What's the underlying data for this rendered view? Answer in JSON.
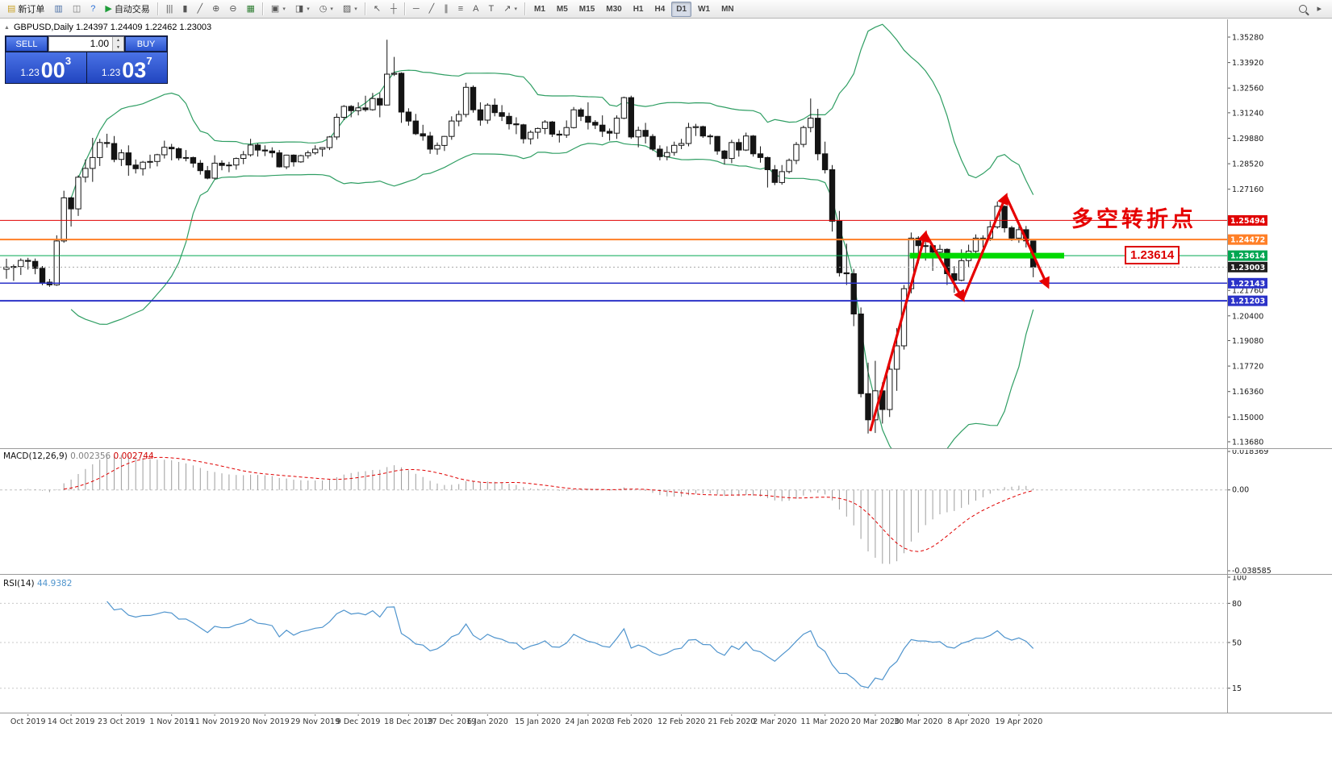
{
  "icons": {
    "collapse_arrow": "▲",
    "spinner_up": "▲",
    "spinner_down": "▼"
  },
  "toolbar": {
    "groups": [
      [
        {
          "name": "new-order",
          "icon": "▤",
          "icon_color": "#c9a227",
          "label": "新订单"
        },
        {
          "name": "market-watch",
          "icon": "▥",
          "icon_color": "#4a6fa5"
        },
        {
          "name": "navigator",
          "icon": "◫",
          "icon_color": "#777777"
        },
        {
          "name": "help",
          "icon": "?",
          "icon_color": "#2a6fd6"
        },
        {
          "name": "auto-trading",
          "icon": "▶",
          "icon_color": "#1f9d3a",
          "label": "自动交易"
        }
      ],
      [
        {
          "name": "bar-chart-mode",
          "icon": "|||"
        },
        {
          "name": "candlestick-mode",
          "icon": "▮"
        },
        {
          "name": "line-chart-mode",
          "icon": "╱"
        },
        {
          "name": "zoom-in",
          "icon": "⊕"
        },
        {
          "name": "zoom-out",
          "icon": "⊖"
        },
        {
          "name": "tile-windows",
          "icon": "▦",
          "icon_color": "#2e7d32"
        }
      ],
      [
        {
          "name": "new-chart",
          "icon": "▣",
          "dropdown": true
        },
        {
          "name": "profiles",
          "icon": "◨",
          "dropdown": true
        },
        {
          "name": "period-menu",
          "icon": "◷",
          "dropdown": true
        },
        {
          "name": "template-menu",
          "icon": "▨",
          "dropdown": true
        }
      ],
      [
        {
          "name": "cursor",
          "icon": "↖"
        },
        {
          "name": "crosshair",
          "icon": "┼"
        }
      ],
      [
        {
          "name": "horizontal-line-tool",
          "icon": "─"
        },
        {
          "name": "trendline-tool",
          "icon": "╱"
        },
        {
          "name": "channel-tool",
          "icon": "∥"
        },
        {
          "name": "fibonacci-tool",
          "icon": "≡"
        },
        {
          "name": "text-tool",
          "icon": "A"
        },
        {
          "name": "text-label-tool",
          "icon": "T"
        },
        {
          "name": "arrows-tool",
          "icon": "↗",
          "dropdown": true
        }
      ]
    ],
    "timeframes": [
      {
        "label": "M1"
      },
      {
        "label": "M5"
      },
      {
        "label": "M15"
      },
      {
        "label": "M30"
      },
      {
        "label": "H1"
      },
      {
        "label": "H4"
      },
      {
        "label": "D1",
        "active": true
      },
      {
        "label": "W1"
      },
      {
        "label": "MN"
      }
    ],
    "right_buttons": [
      {
        "name": "search",
        "css": "magnifier"
      },
      {
        "name": "jump-to",
        "icon": "▸"
      }
    ]
  },
  "chart": {
    "symbol_line": "GBPUSD,Daily 1.24397 1.24409 1.22462 1.23003"
  },
  "trade_panel": {
    "sell_label": "SELL",
    "buy_label": "BUY",
    "volume": "1.00",
    "sell_price_prefix": "1.23",
    "sell_price_big": "00",
    "sell_price_sup": "3",
    "buy_price_prefix": "1.23",
    "buy_price_big": "03",
    "buy_price_sup": "7"
  },
  "annotations": {
    "turning_point_text": "多空转折点",
    "level_label": "1.23614"
  },
  "hlines": [
    {
      "price": 1.25494,
      "label": "1.25494",
      "color": "#e00000",
      "width": 1
    },
    {
      "price": 1.24472,
      "label": "1.24472",
      "color": "#ff7f27",
      "width": 2
    },
    {
      "price": 1.23614,
      "label": "1.23614",
      "color": "#00a651",
      "width": 1
    },
    {
      "price": 1.23003,
      "label": "1.23003",
      "color": "#a8a8a8",
      "width": 1,
      "style": "dotted",
      "tag_bg": "#1f1f1f"
    },
    {
      "price": 1.22143,
      "label": "1.22143",
      "color": "#2b32c8",
      "width": 1.5
    },
    {
      "price": 1.21203,
      "label": "1.21203",
      "color": "#2b32c8",
      "width": 2
    }
  ],
  "green_segment": {
    "price": 1.23614,
    "i_start": 125.8,
    "i_end": 147.3,
    "color": "#00d900",
    "width": 7
  },
  "zigzag": {
    "color": "#e60000",
    "width": 3.2,
    "points": [
      {
        "i": 120.3,
        "p": 1.1425
      },
      {
        "i": 128.0,
        "p": 1.248
      },
      {
        "i": 133.2,
        "p": 1.213
      },
      {
        "i": 139.2,
        "p": 1.268
      },
      {
        "i": 145.0,
        "p": 1.22
      }
    ]
  },
  "chart_data": {
    "type": "candlestick",
    "symbol": "GBPUSD",
    "timeframe": "Daily",
    "open": 1.24397,
    "high": 1.24409,
    "low": 1.22462,
    "close": 1.23003,
    "y_ticks": [
      {
        "v": 1.3528,
        "label": "1.35280"
      },
      {
        "v": 1.3392,
        "label": "1.33920"
      },
      {
        "v": 1.3256,
        "label": "1.32560"
      },
      {
        "v": 1.3124,
        "label": "1.31240"
      },
      {
        "v": 1.2988,
        "label": "1.29880"
      },
      {
        "v": 1.2852,
        "label": "1.28520"
      },
      {
        "v": 1.2716,
        "label": "1.27160"
      },
      {
        "v": 1.2176,
        "label": "1.21760"
      },
      {
        "v": 1.204,
        "label": "1.20400"
      },
      {
        "v": 1.1908,
        "label": "1.19080"
      },
      {
        "v": 1.1772,
        "label": "1.17720"
      },
      {
        "v": 1.1636,
        "label": "1.16360"
      },
      {
        "v": 1.15,
        "label": "1.15000"
      },
      {
        "v": 1.1368,
        "label": "1.13680"
      }
    ],
    "x_labels": [
      {
        "i": 3,
        "label": "Oct 2019"
      },
      {
        "i": 9,
        "label": "14 Oct 2019"
      },
      {
        "i": 16,
        "label": "23 Oct 2019"
      },
      {
        "i": 23,
        "label": "1 Nov 2019"
      },
      {
        "i": 29,
        "label": "11 Nov 2019"
      },
      {
        "i": 36,
        "label": "20 Nov 2019"
      },
      {
        "i": 43,
        "label": "29 Nov 2019"
      },
      {
        "i": 49,
        "label": "9 Dec 2019"
      },
      {
        "i": 56,
        "label": "18 Dec 2019"
      },
      {
        "i": 62,
        "label": "27 Dec 2019"
      },
      {
        "i": 67,
        "label": "6 Jan 2020"
      },
      {
        "i": 74,
        "label": "15 Jan 2020"
      },
      {
        "i": 81,
        "label": "24 Jan 2020"
      },
      {
        "i": 87,
        "label": "3 Feb 2020"
      },
      {
        "i": 94,
        "label": "12 Feb 2020"
      },
      {
        "i": 101,
        "label": "21 Feb 2020"
      },
      {
        "i": 107,
        "label": "2 Mar 2020"
      },
      {
        "i": 114,
        "label": "11 Mar 2020"
      },
      {
        "i": 121,
        "label": "20 Mar 2020"
      },
      {
        "i": 127,
        "label": "30 Mar 2020"
      },
      {
        "i": 134,
        "label": "8 Apr 2020"
      },
      {
        "i": 141,
        "label": "19 Apr 2020"
      }
    ],
    "ohlc": [
      [
        1.2289,
        1.2345,
        1.2238,
        1.23
      ],
      [
        1.23,
        1.2314,
        1.2227,
        1.2303
      ],
      [
        1.2303,
        1.2347,
        1.2258,
        1.2336
      ],
      [
        1.2336,
        1.235,
        1.2287,
        1.2331
      ],
      [
        1.2331,
        1.2346,
        1.2262,
        1.2294
      ],
      [
        1.2294,
        1.2306,
        1.2204,
        1.222
      ],
      [
        1.222,
        1.2237,
        1.2195,
        1.2206
      ],
      [
        1.2206,
        1.247,
        1.22,
        1.244
      ],
      [
        1.244,
        1.2708,
        1.243,
        1.267
      ],
      [
        1.267,
        1.2675,
        1.2517,
        1.2611
      ],
      [
        1.2611,
        1.279,
        1.2573,
        1.278
      ],
      [
        1.278,
        1.2875,
        1.2752,
        1.2827
      ],
      [
        1.2827,
        1.299,
        1.2755,
        1.2885
      ],
      [
        1.2885,
        1.2985,
        1.284,
        1.2965
      ],
      [
        1.2965,
        1.3012,
        1.2938,
        1.296
      ],
      [
        1.296,
        1.3,
        1.286,
        1.2875
      ],
      [
        1.2875,
        1.2928,
        1.284,
        1.291
      ],
      [
        1.291,
        1.295,
        1.2788,
        1.2845
      ],
      [
        1.2845,
        1.2875,
        1.28,
        1.2825
      ],
      [
        1.2825,
        1.2867,
        1.2789,
        1.286
      ],
      [
        1.286,
        1.29,
        1.2827,
        1.2864
      ],
      [
        1.2864,
        1.2905,
        1.2838,
        1.29
      ],
      [
        1.29,
        1.2975,
        1.288,
        1.294
      ],
      [
        1.294,
        1.2958,
        1.287,
        1.2932
      ],
      [
        1.2932,
        1.294,
        1.287,
        1.2883
      ],
      [
        1.2883,
        1.2925,
        1.2865,
        1.2885
      ],
      [
        1.2885,
        1.289,
        1.2832,
        1.2855
      ],
      [
        1.2855,
        1.2872,
        1.2794,
        1.2815
      ],
      [
        1.2815,
        1.284,
        1.2769,
        1.2775
      ],
      [
        1.2775,
        1.2897,
        1.2768,
        1.2855
      ],
      [
        1.2855,
        1.287,
        1.2817,
        1.2843
      ],
      [
        1.2843,
        1.2862,
        1.2807,
        1.2845
      ],
      [
        1.2845,
        1.2885,
        1.282,
        1.288
      ],
      [
        1.288,
        1.292,
        1.285,
        1.29
      ],
      [
        1.29,
        1.2985,
        1.289,
        1.2952
      ],
      [
        1.2952,
        1.296,
        1.289,
        1.2925
      ],
      [
        1.2925,
        1.295,
        1.2893,
        1.292
      ],
      [
        1.292,
        1.294,
        1.2885,
        1.291
      ],
      [
        1.291,
        1.2925,
        1.2832,
        1.2835
      ],
      [
        1.2835,
        1.29,
        1.2823,
        1.2898
      ],
      [
        1.2898,
        1.2902,
        1.2837,
        1.2862
      ],
      [
        1.2862,
        1.29,
        1.2857,
        1.2895
      ],
      [
        1.2895,
        1.2922,
        1.288,
        1.291
      ],
      [
        1.291,
        1.295,
        1.29,
        1.293
      ],
      [
        1.293,
        1.294,
        1.289,
        1.2938
      ],
      [
        1.2938,
        1.3,
        1.2925,
        1.2995
      ],
      [
        1.2995,
        1.312,
        1.298,
        1.31
      ],
      [
        1.31,
        1.3165,
        1.3085,
        1.3158
      ],
      [
        1.3158,
        1.3165,
        1.31,
        1.3135
      ],
      [
        1.3135,
        1.318,
        1.311,
        1.315
      ],
      [
        1.315,
        1.3215,
        1.313,
        1.314
      ],
      [
        1.314,
        1.323,
        1.3135,
        1.32
      ],
      [
        1.32,
        1.323,
        1.31,
        1.3165
      ],
      [
        1.3165,
        1.3514,
        1.3165,
        1.333
      ],
      [
        1.333,
        1.3422,
        1.332,
        1.3335
      ],
      [
        1.3335,
        1.334,
        1.307,
        1.3128
      ],
      [
        1.3128,
        1.3148,
        1.3055,
        1.308
      ],
      [
        1.308,
        1.3118,
        1.3005,
        1.3012
      ],
      [
        1.3012,
        1.306,
        1.2975,
        1.3
      ],
      [
        1.3,
        1.3022,
        1.2905,
        1.293
      ],
      [
        1.293,
        1.2965,
        1.29,
        1.295
      ],
      [
        1.295,
        1.3,
        1.292,
        1.2998
      ],
      [
        1.2998,
        1.3105,
        1.298,
        1.308
      ],
      [
        1.308,
        1.3135,
        1.3052,
        1.3115
      ],
      [
        1.3115,
        1.3284,
        1.31,
        1.326
      ],
      [
        1.326,
        1.327,
        1.3125,
        1.314
      ],
      [
        1.314,
        1.318,
        1.3055,
        1.3085
      ],
      [
        1.3085,
        1.3175,
        1.3065,
        1.3165
      ],
      [
        1.3165,
        1.32,
        1.3105,
        1.3125
      ],
      [
        1.3125,
        1.3165,
        1.308,
        1.3105
      ],
      [
        1.3105,
        1.3125,
        1.3035,
        1.3065
      ],
      [
        1.3065,
        1.31,
        1.301,
        1.306
      ],
      [
        1.306,
        1.3065,
        1.296,
        1.2985
      ],
      [
        1.2985,
        1.303,
        1.2955,
        1.302
      ],
      [
        1.302,
        1.3045,
        1.2985,
        1.304
      ],
      [
        1.304,
        1.3085,
        1.301,
        1.3075
      ],
      [
        1.3075,
        1.308,
        1.2995,
        1.301
      ],
      [
        1.301,
        1.303,
        1.2965,
        1.3005
      ],
      [
        1.3005,
        1.3083,
        1.299,
        1.3045
      ],
      [
        1.3045,
        1.3155,
        1.304,
        1.314
      ],
      [
        1.314,
        1.315,
        1.308,
        1.3105
      ],
      [
        1.3105,
        1.318,
        1.3035,
        1.3073
      ],
      [
        1.3073,
        1.3085,
        1.3037,
        1.3058
      ],
      [
        1.3058,
        1.311,
        1.2995,
        1.3025
      ],
      [
        1.3025,
        1.304,
        1.2975,
        1.3015
      ],
      [
        1.3015,
        1.311,
        1.2985,
        1.3095
      ],
      [
        1.3095,
        1.321,
        1.309,
        1.3205
      ],
      [
        1.3205,
        1.3215,
        1.2985,
        1.2995
      ],
      [
        1.2995,
        1.305,
        1.294,
        1.303
      ],
      [
        1.303,
        1.307,
        1.296,
        1.2998
      ],
      [
        1.2998,
        1.301,
        1.292,
        1.293
      ],
      [
        1.293,
        1.295,
        1.287,
        1.289
      ],
      [
        1.289,
        1.2945,
        1.287,
        1.2912
      ],
      [
        1.2912,
        1.297,
        1.2895,
        1.295
      ],
      [
        1.295,
        1.2985,
        1.293,
        1.296
      ],
      [
        1.296,
        1.307,
        1.2945,
        1.3045
      ],
      [
        1.3045,
        1.3065,
        1.3,
        1.305
      ],
      [
        1.305,
        1.3055,
        1.299,
        1.3
      ],
      [
        1.3,
        1.301,
        1.2955,
        1.2998
      ],
      [
        1.2998,
        1.3,
        1.29,
        1.292
      ],
      [
        1.292,
        1.2925,
        1.2848,
        1.288
      ],
      [
        1.288,
        1.298,
        1.2855,
        1.2965
      ],
      [
        1.2965,
        1.2985,
        1.289,
        1.2925
      ],
      [
        1.2925,
        1.3018,
        1.292,
        1.3
      ],
      [
        1.3,
        1.3005,
        1.289,
        1.2905
      ],
      [
        1.2905,
        1.2945,
        1.2858,
        1.2885
      ],
      [
        1.2885,
        1.289,
        1.2725,
        1.282
      ],
      [
        1.282,
        1.2845,
        1.2738,
        1.2752
      ],
      [
        1.2752,
        1.2845,
        1.274,
        1.281
      ],
      [
        1.281,
        1.288,
        1.28,
        1.287
      ],
      [
        1.287,
        1.2968,
        1.285,
        1.2955
      ],
      [
        1.2955,
        1.3055,
        1.294,
        1.3045
      ],
      [
        1.3045,
        1.32,
        1.302,
        1.3095
      ],
      [
        1.3095,
        1.3145,
        1.287,
        1.2905
      ],
      [
        1.2905,
        1.297,
        1.28,
        1.282
      ],
      [
        1.282,
        1.2845,
        1.249,
        1.2545
      ],
      [
        1.2545,
        1.26,
        1.225,
        1.227
      ],
      [
        1.227,
        1.2425,
        1.2205,
        1.2265
      ],
      [
        1.2265,
        1.229,
        1.1985,
        1.205
      ],
      [
        1.205,
        1.2085,
        1.1605,
        1.1625
      ],
      [
        1.1625,
        1.179,
        1.1412,
        1.1485
      ],
      [
        1.1485,
        1.18,
        1.1415,
        1.164
      ],
      [
        1.164,
        1.1685,
        1.1465,
        1.154
      ],
      [
        1.154,
        1.18,
        1.15,
        1.1755
      ],
      [
        1.1755,
        1.1975,
        1.164,
        1.188
      ],
      [
        1.188,
        1.2205,
        1.186,
        1.2185
      ],
      [
        1.2185,
        1.2485,
        1.216,
        1.2455
      ],
      [
        1.2455,
        1.2465,
        1.232,
        1.2415
      ],
      [
        1.2415,
        1.247,
        1.2335,
        1.2415
      ],
      [
        1.2415,
        1.242,
        1.228,
        1.238
      ],
      [
        1.238,
        1.242,
        1.2345,
        1.2395
      ],
      [
        1.2395,
        1.24,
        1.2205,
        1.2265
      ],
      [
        1.2265,
        1.2305,
        1.2163,
        1.223
      ],
      [
        1.223,
        1.2395,
        1.2225,
        1.2335
      ],
      [
        1.2335,
        1.242,
        1.23,
        1.2385
      ],
      [
        1.2385,
        1.2475,
        1.237,
        1.2455
      ],
      [
        1.2455,
        1.247,
        1.2405,
        1.2455
      ],
      [
        1.2455,
        1.2545,
        1.244,
        1.2515
      ],
      [
        1.2515,
        1.265,
        1.2505,
        1.2625
      ],
      [
        1.2625,
        1.263,
        1.2485,
        1.251
      ],
      [
        1.251,
        1.252,
        1.244,
        1.2455
      ],
      [
        1.2455,
        1.2525,
        1.243,
        1.25
      ],
      [
        1.25,
        1.252,
        1.2405,
        1.244
      ],
      [
        1.24397,
        1.24409,
        1.22462,
        1.23003
      ]
    ],
    "indicators": {
      "bollinger": {
        "period": 20,
        "deviation": 2,
        "color": "#2f9e63"
      },
      "macd": {
        "label": "MACD(12,26,9)",
        "value_main": "0.002356",
        "value_signal": "0.002744",
        "scale_max": 0.018369,
        "scale_min": -0.038585,
        "scale_labels": [
          {
            "v": 0.018369,
            "label": "0.018369"
          },
          {
            "v": 0,
            "label": "0.00"
          },
          {
            "v": -0.038585,
            "label": "-0.038585"
          }
        ],
        "histogram_color": "#9d9d9d",
        "signal_color": "#e00000"
      },
      "rsi": {
        "label": "RSI(14)",
        "value": "44.9382",
        "color": "#4f94cd",
        "levels": [
          80,
          50,
          15
        ],
        "scale_labels": [
          {
            "v": 100,
            "label": "100"
          },
          {
            "v": 80,
            "label": "80"
          },
          {
            "v": 50,
            "label": "50"
          },
          {
            "v": 15,
            "label": "15"
          }
        ]
      }
    }
  }
}
